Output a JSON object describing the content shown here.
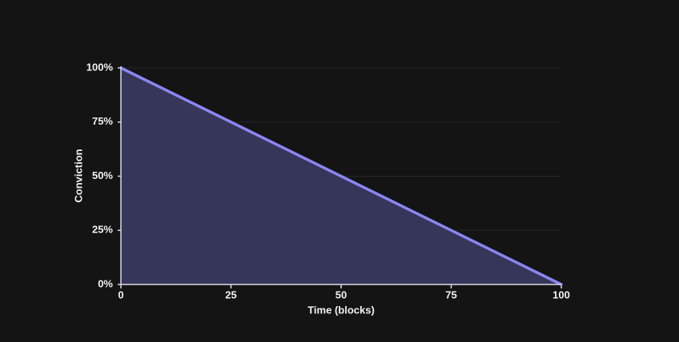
{
  "chart_data": {
    "type": "area",
    "xlabel": "Time (blocks)",
    "ylabel": "Conviction",
    "x": [
      0,
      100
    ],
    "values": [
      100,
      0
    ],
    "color": "#8a86f2",
    "fill_color": "#36365a",
    "xlim": [
      0,
      100
    ],
    "xticks": [
      0,
      25,
      50,
      75,
      100
    ],
    "ylim": [
      0,
      100
    ],
    "yticks": [
      {
        "value": 0,
        "label": "0%"
      },
      {
        "value": 25,
        "label": "25%"
      },
      {
        "value": 50,
        "label": "50%"
      },
      {
        "value": 75,
        "label": "75%"
      },
      {
        "value": 100,
        "label": "100%"
      }
    ],
    "grid": true
  }
}
